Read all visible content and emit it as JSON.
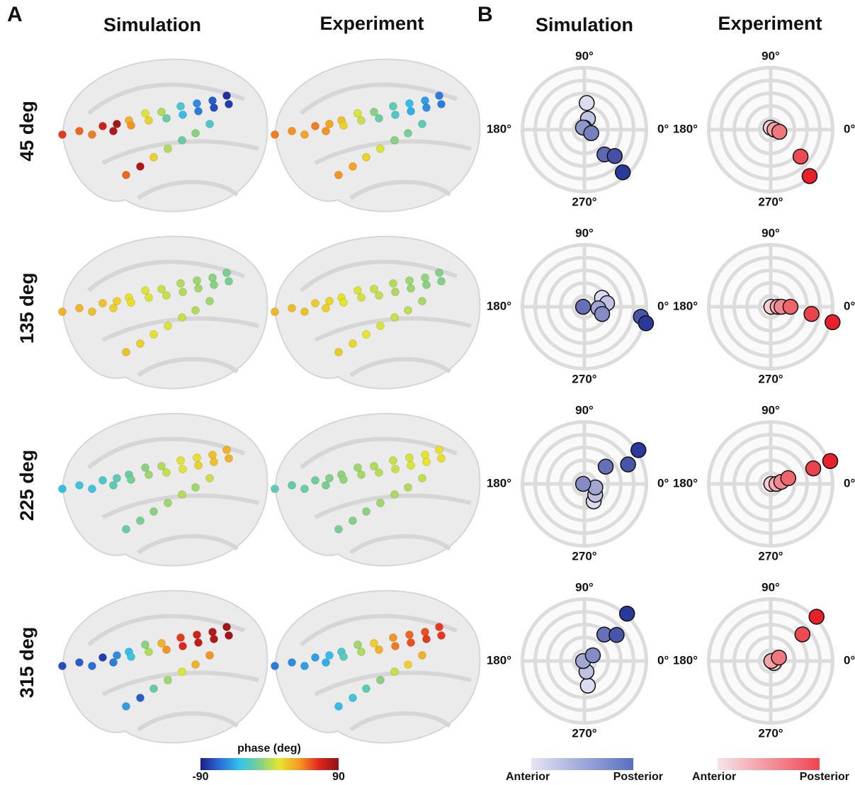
{
  "panel_labels": [
    "A",
    "B"
  ],
  "panel_a": {
    "columns": [
      "Simulation",
      "Experiment"
    ],
    "rows": [
      {
        "label": "45 deg",
        "simulation_phase": [
          60,
          50,
          45,
          70,
          80,
          85,
          30,
          40,
          10,
          20,
          0,
          -20,
          -30,
          -40,
          -55,
          -60,
          -70,
          -75,
          -85,
          -80,
          50,
          80,
          20,
          0,
          -20,
          -10,
          -30
        ],
        "experiment_phase": [
          45,
          40,
          35,
          45,
          40,
          35,
          25,
          20,
          10,
          5,
          -10,
          -20,
          -25,
          -30,
          -40,
          -45,
          -50,
          -55,
          -60,
          -60,
          40,
          35,
          20,
          10,
          -10,
          -15,
          -25
        ]
      },
      {
        "label": "135 deg",
        "simulation_phase": [
          30,
          30,
          25,
          25,
          20,
          20,
          15,
          15,
          10,
          10,
          5,
          5,
          0,
          0,
          -5,
          -5,
          -10,
          -10,
          -15,
          -15,
          25,
          20,
          15,
          10,
          5,
          0,
          -5
        ],
        "experiment_phase": [
          28,
          28,
          25,
          22,
          20,
          18,
          15,
          12,
          10,
          8,
          5,
          3,
          0,
          -2,
          -5,
          -6,
          -8,
          -10,
          -12,
          -12,
          22,
          18,
          14,
          10,
          5,
          2,
          -3
        ]
      },
      {
        "label": "225 deg",
        "simulation_phase": [
          -40,
          -35,
          -35,
          -30,
          -25,
          -25,
          -20,
          -15,
          -10,
          -5,
          0,
          5,
          10,
          10,
          15,
          20,
          25,
          25,
          30,
          30,
          -20,
          -15,
          -10,
          -5,
          0,
          -5,
          5
        ],
        "experiment_phase": [
          -25,
          -22,
          -20,
          -18,
          -15,
          -12,
          -10,
          -8,
          -5,
          -3,
          0,
          2,
          5,
          6,
          8,
          10,
          12,
          14,
          15,
          16,
          -15,
          -12,
          -10,
          -5,
          -2,
          0,
          3
        ]
      },
      {
        "label": "315 deg",
        "simulation_phase": [
          -75,
          -70,
          -65,
          -80,
          -60,
          -55,
          -40,
          -35,
          -10,
          0,
          30,
          40,
          60,
          65,
          70,
          75,
          80,
          80,
          85,
          85,
          -50,
          -70,
          -20,
          -5,
          10,
          30,
          40
        ],
        "experiment_phase": [
          -60,
          -55,
          -50,
          -50,
          -45,
          -40,
          -30,
          -25,
          -5,
          0,
          20,
          30,
          40,
          45,
          50,
          55,
          55,
          60,
          60,
          60,
          -40,
          -35,
          -25,
          -10,
          5,
          20,
          30
        ]
      }
    ],
    "colorbar": {
      "label": "phase (deg)",
      "lim": [
        -90,
        90
      ],
      "ticks": [
        -90,
        90
      ],
      "colors": [
        "#1c1f8c",
        "#2a6fd8",
        "#33c3ea",
        "#7ed08a",
        "#e8e62a",
        "#f59a22",
        "#e3261e",
        "#8e1216"
      ]
    }
  },
  "panel_b": {
    "columns": [
      "Simulation",
      "Experiment"
    ],
    "angle_labels": [
      {
        "value": 90,
        "label": "90°"
      },
      {
        "value": 180,
        "label": "180°"
      },
      {
        "value": 0,
        "label": "0°"
      },
      {
        "value": 270,
        "label": "270°"
      }
    ],
    "rows": [
      {
        "simulation": [
          {
            "angle": 85,
            "r": 0.42
          },
          {
            "angle": 72,
            "r": 0.18
          },
          {
            "angle": 90,
            "r": 0.03
          },
          {
            "angle": 124,
            "r": 0.04
          },
          {
            "angle": 333,
            "r": 0.12
          },
          {
            "angle": 309,
            "r": 0.5
          },
          {
            "angle": 319,
            "r": 0.63
          },
          {
            "angle": 312,
            "r": 0.9
          }
        ],
        "experiment": [
          {
            "angle": 90,
            "r": 0.03
          },
          {
            "angle": 0,
            "r": 0.06
          },
          {
            "angle": 346,
            "r": 0.14
          },
          {
            "angle": 318,
            "r": 0.63
          },
          {
            "angle": 310,
            "r": 0.95
          }
        ]
      },
      {
        "simulation": [
          {
            "angle": 27,
            "r": 0.31
          },
          {
            "angle": 9,
            "r": 0.36
          },
          {
            "angle": 354,
            "r": 0.22
          },
          {
            "angle": 338,
            "r": 0.3
          },
          {
            "angle": 180,
            "r": 0.02
          },
          {
            "angle": 350,
            "r": 0.9
          },
          {
            "angle": 345,
            "r": 1.0
          }
        ],
        "experiment": [
          {
            "angle": 0,
            "r": 0.01
          },
          {
            "angle": 0,
            "r": 0.11
          },
          {
            "angle": 0,
            "r": 0.17
          },
          {
            "angle": 0,
            "r": 0.31
          },
          {
            "angle": 350,
            "r": 0.65
          },
          {
            "angle": 346,
            "r": 1.0
          }
        ]
      },
      {
        "simulation": [
          {
            "angle": 298,
            "r": 0.31
          },
          {
            "angle": 315,
            "r": 0.24
          },
          {
            "angle": 342,
            "r": 0.18
          },
          {
            "angle": 180,
            "r": 0.02
          },
          {
            "angle": 39,
            "r": 0.43
          },
          {
            "angle": 24,
            "r": 0.75
          },
          {
            "angle": 32,
            "r": 1.0
          }
        ],
        "experiment": [
          {
            "angle": 0,
            "r": 0.01
          },
          {
            "angle": 0,
            "r": 0.09
          },
          {
            "angle": 11,
            "r": 0.17
          },
          {
            "angle": 18,
            "r": 0.29
          },
          {
            "angle": 20,
            "r": 0.71
          },
          {
            "angle": 21,
            "r": 1.0
          }
        ]
      },
      {
        "simulation": [
          {
            "angle": 278,
            "r": 0.39
          },
          {
            "angle": 281,
            "r": 0.17
          },
          {
            "angle": 180,
            "r": 0.02
          },
          {
            "angle": 34,
            "r": 0.16
          },
          {
            "angle": 53,
            "r": 0.52
          },
          {
            "angle": 39,
            "r": 0.65
          },
          {
            "angle": 48,
            "r": 1.0
          }
        ],
        "experiment": [
          {
            "angle": 329,
            "r": 0.06
          },
          {
            "angle": 0,
            "r": 0.01
          },
          {
            "angle": 23,
            "r": 0.14
          },
          {
            "angle": 40,
            "r": 0.65
          },
          {
            "angle": 44,
            "r": 1.0
          }
        ]
      }
    ],
    "legends": [
      {
        "colors": [
          "#e4e4f3",
          "#5a6fc0"
        ],
        "point_colors": [
          "#dcdcf0",
          "#2b3a9a"
        ],
        "labels": [
          "Anterior",
          "Posterior"
        ]
      },
      {
        "colors": [
          "#f6e4ea",
          "#f0454f"
        ],
        "point_colors": [
          "#f7cdd0",
          "#e8202a"
        ],
        "labels": [
          "Anterior",
          "Posterior"
        ]
      }
    ]
  }
}
